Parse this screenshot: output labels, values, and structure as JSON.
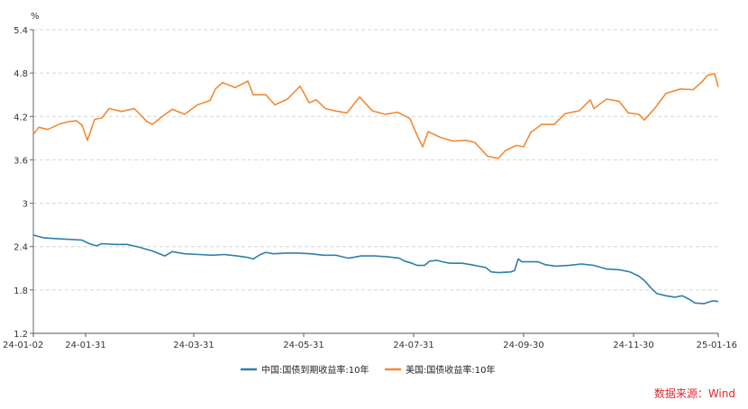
{
  "chart_data": {
    "type": "line",
    "unit_label": "%",
    "ylim": [
      1.2,
      5.4
    ],
    "yticks": [
      1.2,
      1.8,
      2.4,
      3,
      3.6,
      4.2,
      4.8,
      5.4
    ],
    "ytick_labels": [
      "1.2",
      "1.8",
      "2.4",
      "3",
      "3.6",
      "4.2",
      "4.8",
      "5.4"
    ],
    "xlim": [
      "2024-01-02",
      "2025-01-16"
    ],
    "xticks": [
      "2024-01-02",
      "2024-01-31",
      "2024-03-31",
      "2024-05-31",
      "2024-07-31",
      "2024-09-30",
      "2024-11-30",
      "2025-01-16"
    ],
    "xtick_labels": [
      "24-01-02",
      "24-01-31",
      "24-03-31",
      "24-05-31",
      "24-07-31",
      "24-09-30",
      "24-11-30",
      "25-01-16"
    ],
    "grid": true,
    "legend_position": "bottom",
    "series": [
      {
        "name": "中国:国债到期收益率:10年",
        "color": "#2e7fa8",
        "points": [
          [
            "2024-01-02",
            2.56
          ],
          [
            "2024-01-08",
            2.52
          ],
          [
            "2024-01-15",
            2.51
          ],
          [
            "2024-01-22",
            2.5
          ],
          [
            "2024-01-29",
            2.49
          ],
          [
            "2024-02-02",
            2.44
          ],
          [
            "2024-02-06",
            2.41
          ],
          [
            "2024-02-09",
            2.44
          ],
          [
            "2024-02-16",
            2.43
          ],
          [
            "2024-02-23",
            2.43
          ],
          [
            "2024-03-01",
            2.39
          ],
          [
            "2024-03-05",
            2.36
          ],
          [
            "2024-03-08",
            2.34
          ],
          [
            "2024-03-12",
            2.3
          ],
          [
            "2024-03-15",
            2.27
          ],
          [
            "2024-03-19",
            2.33
          ],
          [
            "2024-03-26",
            2.3
          ],
          [
            "2024-04-03",
            2.29
          ],
          [
            "2024-04-10",
            2.28
          ],
          [
            "2024-04-17",
            2.29
          ],
          [
            "2024-04-24",
            2.27
          ],
          [
            "2024-04-30",
            2.25
          ],
          [
            "2024-05-03",
            2.23
          ],
          [
            "2024-05-07",
            2.29
          ],
          [
            "2024-05-10",
            2.32
          ],
          [
            "2024-05-14",
            2.3
          ],
          [
            "2024-05-21",
            2.31
          ],
          [
            "2024-05-28",
            2.31
          ],
          [
            "2024-06-04",
            2.3
          ],
          [
            "2024-06-11",
            2.28
          ],
          [
            "2024-06-18",
            2.28
          ],
          [
            "2024-06-21",
            2.26
          ],
          [
            "2024-06-25",
            2.24
          ],
          [
            "2024-07-02",
            2.27
          ],
          [
            "2024-07-09",
            2.27
          ],
          [
            "2024-07-16",
            2.26
          ],
          [
            "2024-07-23",
            2.24
          ],
          [
            "2024-07-26",
            2.2
          ],
          [
            "2024-07-30",
            2.17
          ],
          [
            "2024-08-02",
            2.14
          ],
          [
            "2024-08-06",
            2.14
          ],
          [
            "2024-08-09",
            2.2
          ],
          [
            "2024-08-13",
            2.21
          ],
          [
            "2024-08-16",
            2.19
          ],
          [
            "2024-08-20",
            2.17
          ],
          [
            "2024-08-27",
            2.17
          ],
          [
            "2024-09-03",
            2.14
          ],
          [
            "2024-09-09",
            2.11
          ],
          [
            "2024-09-12",
            2.05
          ],
          [
            "2024-09-16",
            2.04
          ],
          [
            "2024-09-23",
            2.05
          ],
          [
            "2024-09-25",
            2.07
          ],
          [
            "2024-09-27",
            2.23
          ],
          [
            "2024-09-29",
            2.19
          ],
          [
            "2024-10-08",
            2.19
          ],
          [
            "2024-10-12",
            2.15
          ],
          [
            "2024-10-18",
            2.13
          ],
          [
            "2024-10-25",
            2.14
          ],
          [
            "2024-11-01",
            2.16
          ],
          [
            "2024-11-08",
            2.14
          ],
          [
            "2024-11-15",
            2.09
          ],
          [
            "2024-11-22",
            2.08
          ],
          [
            "2024-11-28",
            2.05
          ],
          [
            "2024-12-03",
            1.99
          ],
          [
            "2024-12-06",
            1.93
          ],
          [
            "2024-12-10",
            1.82
          ],
          [
            "2024-12-13",
            1.75
          ],
          [
            "2024-12-18",
            1.72
          ],
          [
            "2024-12-23",
            1.7
          ],
          [
            "2024-12-27",
            1.72
          ],
          [
            "2024-12-31",
            1.67
          ],
          [
            "2025-01-03",
            1.62
          ],
          [
            "2025-01-08",
            1.61
          ],
          [
            "2025-01-13",
            1.65
          ],
          [
            "2025-01-16",
            1.64
          ]
        ]
      },
      {
        "name": "美国:国债收益率:10年",
        "color": "#f08a36",
        "points": [
          [
            "2024-01-02",
            3.95
          ],
          [
            "2024-01-05",
            4.05
          ],
          [
            "2024-01-10",
            4.02
          ],
          [
            "2024-01-17",
            4.1
          ],
          [
            "2024-01-22",
            4.13
          ],
          [
            "2024-01-26",
            4.14
          ],
          [
            "2024-01-29",
            4.08
          ],
          [
            "2024-02-01",
            3.87
          ],
          [
            "2024-02-05",
            4.16
          ],
          [
            "2024-02-09",
            4.18
          ],
          [
            "2024-02-13",
            4.31
          ],
          [
            "2024-02-20",
            4.27
          ],
          [
            "2024-02-27",
            4.31
          ],
          [
            "2024-03-05",
            4.13
          ],
          [
            "2024-03-08",
            4.09
          ],
          [
            "2024-03-13",
            4.19
          ],
          [
            "2024-03-19",
            4.3
          ],
          [
            "2024-03-26",
            4.23
          ],
          [
            "2024-04-02",
            4.36
          ],
          [
            "2024-04-09",
            4.42
          ],
          [
            "2024-04-12",
            4.58
          ],
          [
            "2024-04-16",
            4.67
          ],
          [
            "2024-04-23",
            4.6
          ],
          [
            "2024-04-30",
            4.69
          ],
          [
            "2024-05-03",
            4.5
          ],
          [
            "2024-05-10",
            4.5
          ],
          [
            "2024-05-15",
            4.36
          ],
          [
            "2024-05-22",
            4.44
          ],
          [
            "2024-05-29",
            4.62
          ],
          [
            "2024-06-03",
            4.39
          ],
          [
            "2024-06-07",
            4.43
          ],
          [
            "2024-06-12",
            4.31
          ],
          [
            "2024-06-17",
            4.28
          ],
          [
            "2024-06-24",
            4.25
          ],
          [
            "2024-07-01",
            4.47
          ],
          [
            "2024-07-08",
            4.28
          ],
          [
            "2024-07-15",
            4.23
          ],
          [
            "2024-07-22",
            4.26
          ],
          [
            "2024-07-29",
            4.17
          ],
          [
            "2024-08-01",
            3.99
          ],
          [
            "2024-08-05",
            3.78
          ],
          [
            "2024-08-08",
            3.99
          ],
          [
            "2024-08-15",
            3.91
          ],
          [
            "2024-08-22",
            3.86
          ],
          [
            "2024-08-29",
            3.87
          ],
          [
            "2024-09-03",
            3.84
          ],
          [
            "2024-09-10",
            3.65
          ],
          [
            "2024-09-16",
            3.62
          ],
          [
            "2024-09-20",
            3.73
          ],
          [
            "2024-09-26",
            3.8
          ],
          [
            "2024-09-30",
            3.78
          ],
          [
            "2024-10-04",
            3.98
          ],
          [
            "2024-10-10",
            4.09
          ],
          [
            "2024-10-17",
            4.09
          ],
          [
            "2024-10-23",
            4.24
          ],
          [
            "2024-10-31",
            4.28
          ],
          [
            "2024-11-06",
            4.43
          ],
          [
            "2024-11-08",
            4.31
          ],
          [
            "2024-11-15",
            4.44
          ],
          [
            "2024-11-22",
            4.41
          ],
          [
            "2024-11-27",
            4.25
          ],
          [
            "2024-12-03",
            4.23
          ],
          [
            "2024-12-06",
            4.15
          ],
          [
            "2024-12-12",
            4.32
          ],
          [
            "2024-12-18",
            4.52
          ],
          [
            "2024-12-26",
            4.58
          ],
          [
            "2025-01-02",
            4.57
          ],
          [
            "2025-01-07",
            4.68
          ],
          [
            "2025-01-10",
            4.77
          ],
          [
            "2025-01-14",
            4.79
          ],
          [
            "2025-01-16",
            4.61
          ]
        ]
      }
    ]
  },
  "source_text": "数据来源：Wind"
}
